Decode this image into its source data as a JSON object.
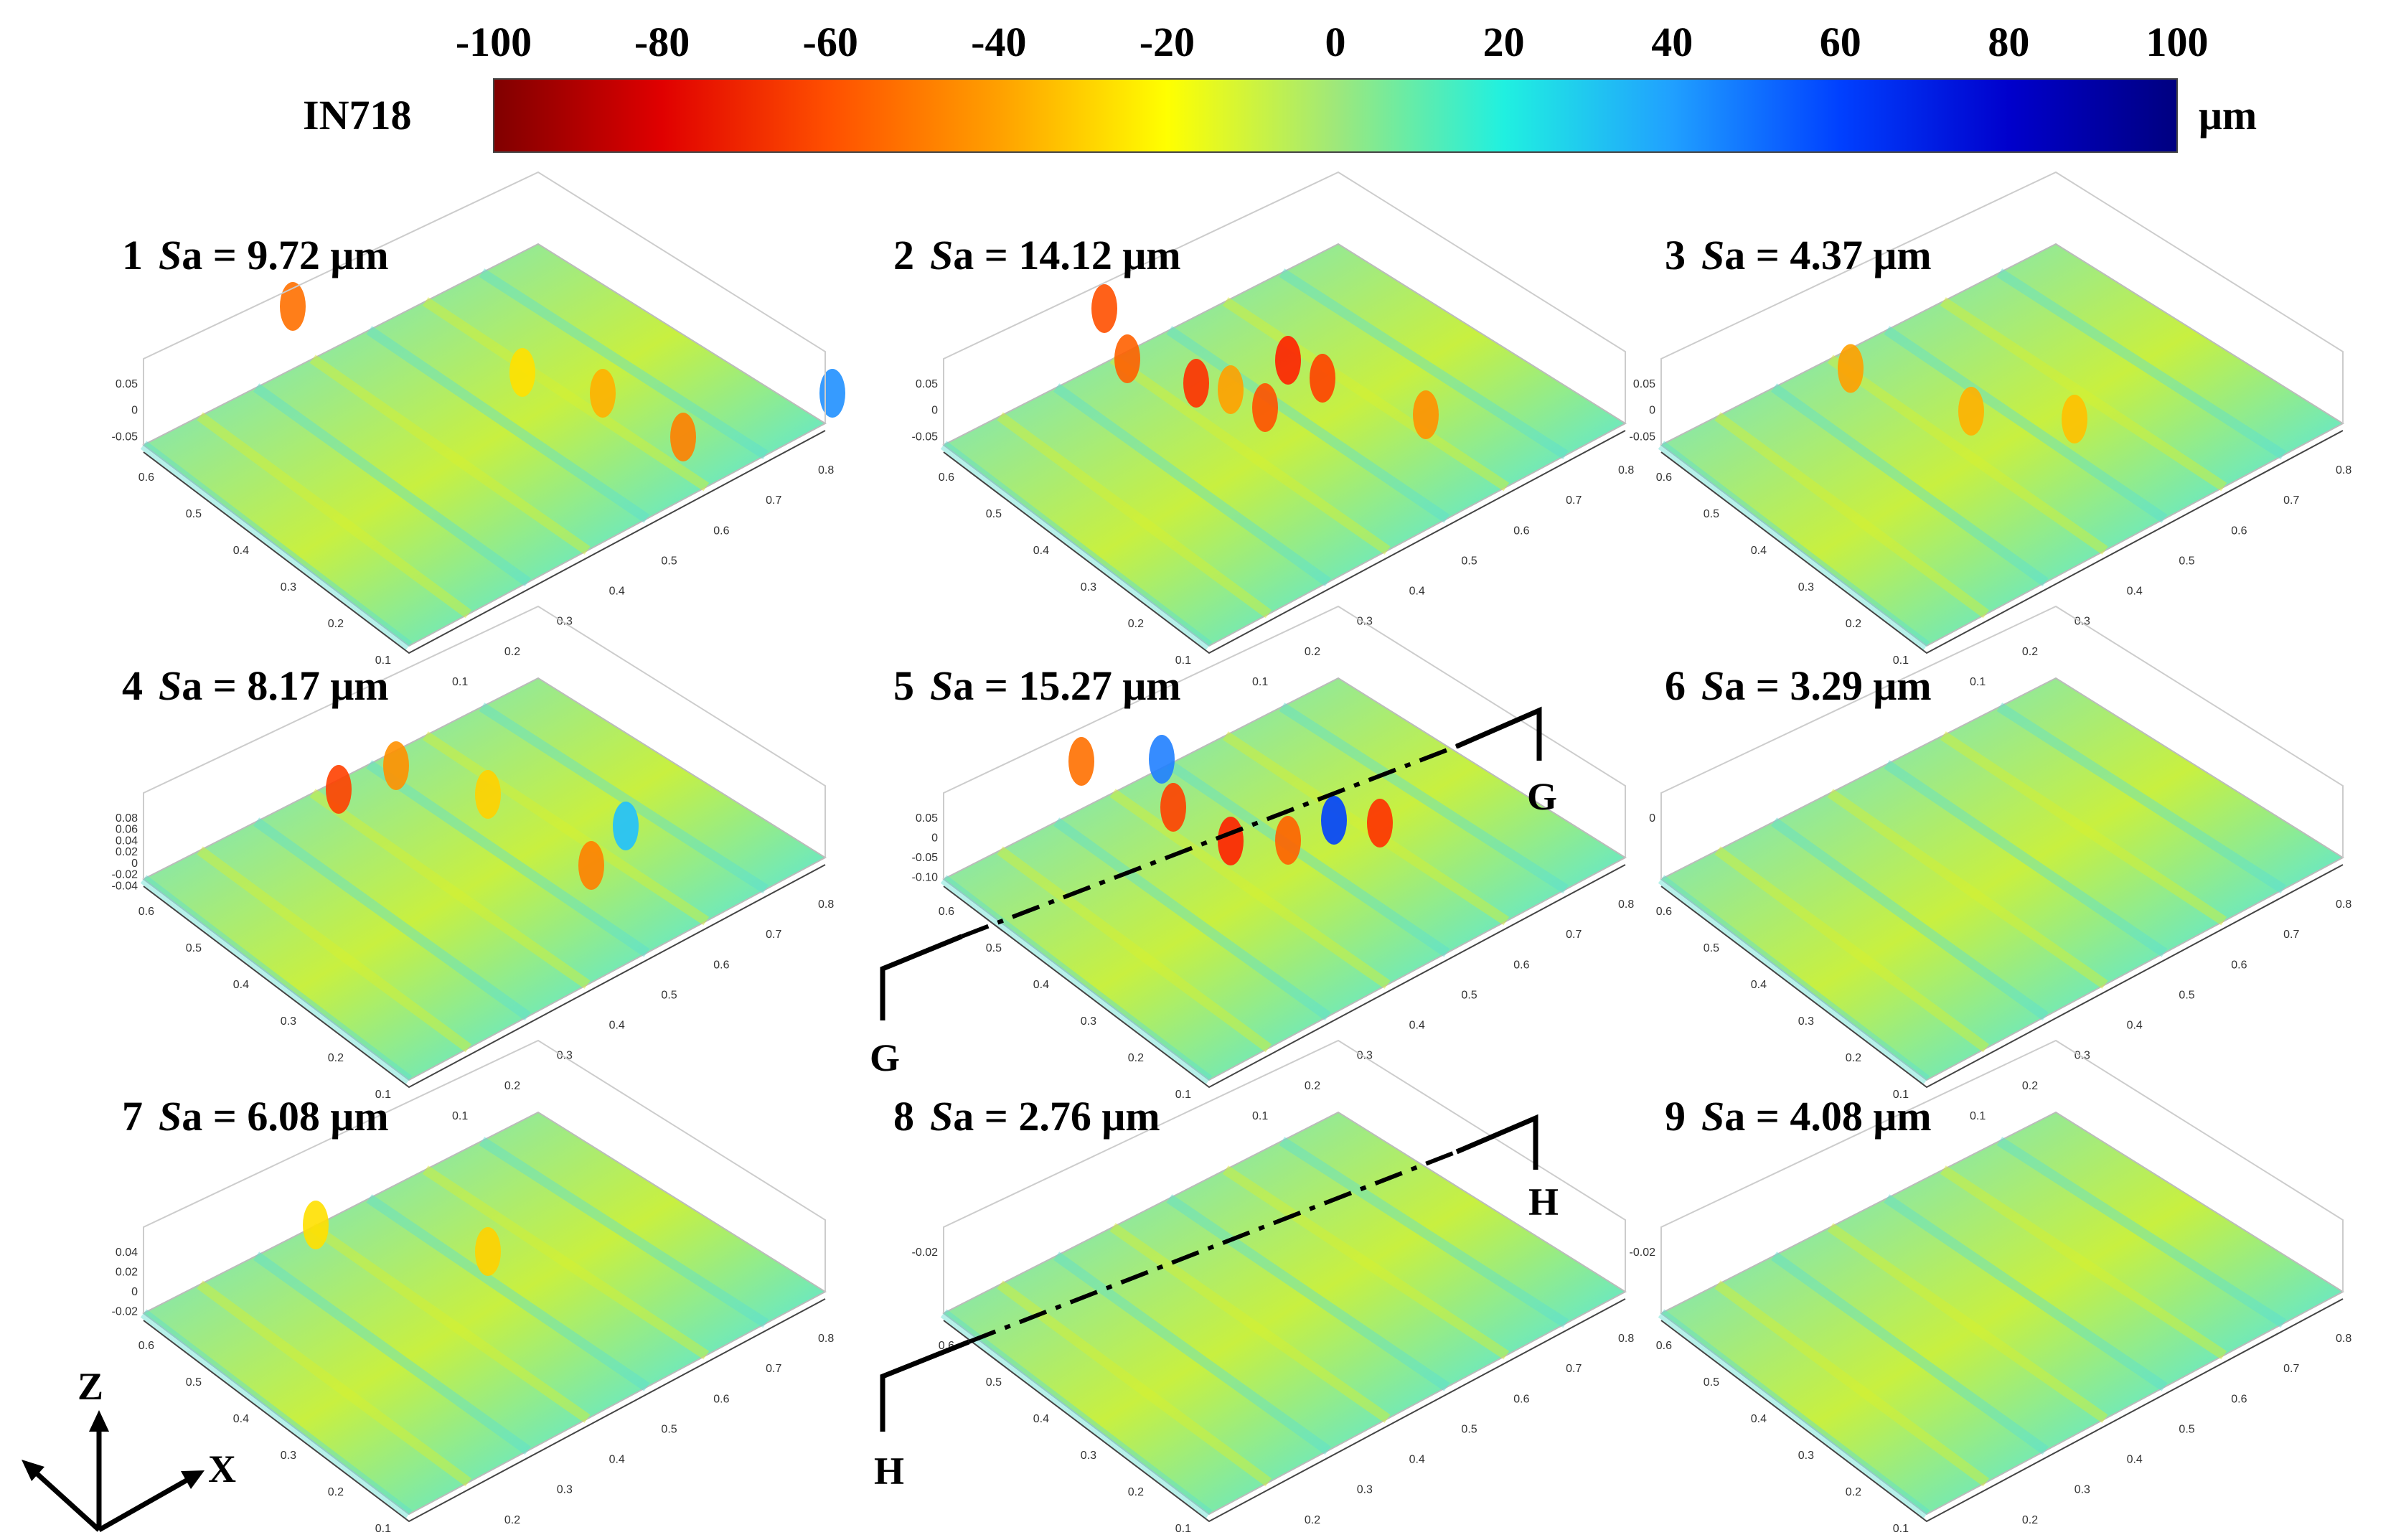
{
  "colorbar": {
    "material": "IN718",
    "unit": "μm",
    "ticks": [
      "-100",
      "-80",
      "-60",
      "-40",
      "-20",
      "0",
      "20",
      "40",
      "60",
      "80",
      "100"
    ],
    "colormap": [
      "#800000",
      "#e00000",
      "#ff5000",
      "#ffa000",
      "#ffff00",
      "#9fe87a",
      "#20f0e0",
      "#20a0ff",
      "#0040ff",
      "#0000cc",
      "#000080"
    ]
  },
  "panels": [
    {
      "num": "1",
      "sa_prefix": "S",
      "sa_label": "a = 9.72 μm",
      "z_ticks": [
        "0.05",
        "0",
        "-0.05"
      ]
    },
    {
      "num": "2",
      "sa_prefix": "S",
      "sa_label": "a = 14.12 μm",
      "z_ticks": [
        "0.05",
        "0",
        "-0.05"
      ]
    },
    {
      "num": "3",
      "sa_prefix": "S",
      "sa_label": "a = 4.37 μm",
      "z_ticks": [
        "0.05",
        "0",
        "-0.05"
      ]
    },
    {
      "num": "4",
      "sa_prefix": "S",
      "sa_label": "a = 8.17 μm",
      "z_ticks": [
        "0.08",
        "0.06",
        "0.04",
        "0.02",
        "0",
        "-0.02",
        "-0.04"
      ]
    },
    {
      "num": "5",
      "sa_prefix": "S",
      "sa_label": "a = 15.27 μm",
      "z_ticks": [
        "0.05",
        "0",
        "-0.05",
        "-0.10"
      ]
    },
    {
      "num": "6",
      "sa_prefix": "S",
      "sa_label": "a = 3.29 μm",
      "z_ticks": [
        "0"
      ]
    },
    {
      "num": "7",
      "sa_prefix": "S",
      "sa_label": "a = 6.08 μm",
      "z_ticks": [
        "0.04",
        "0.02",
        "0",
        "-0.02"
      ]
    },
    {
      "num": "8",
      "sa_prefix": "S",
      "sa_label": "a = 2.76 μm",
      "z_ticks": [
        "-0.02"
      ]
    },
    {
      "num": "9",
      "sa_prefix": "S",
      "sa_label": "a = 4.08 μm",
      "z_ticks": [
        "-0.02"
      ]
    }
  ],
  "axis_ticks": {
    "left": [
      "0.6",
      "0.5",
      "0.4",
      "0.3",
      "0.2",
      "0.1"
    ],
    "right": [
      "0.1",
      "0.2",
      "0.3",
      "0.4",
      "0.5",
      "0.6",
      "0.7",
      "0.8"
    ]
  },
  "sections": [
    {
      "label": "G"
    },
    {
      "label": "H"
    }
  ],
  "axes_labels": {
    "z": "Z",
    "x": "X"
  }
}
